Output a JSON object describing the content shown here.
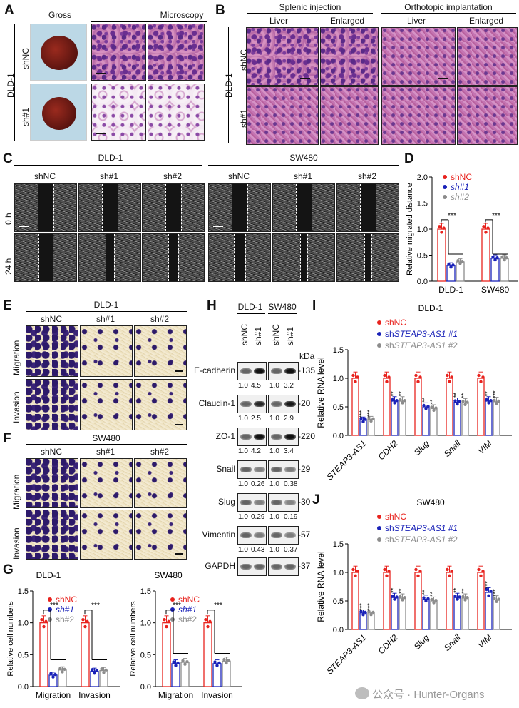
{
  "panels": {
    "A": "A",
    "B": "B",
    "C": "C",
    "D": "D",
    "E": "E",
    "F": "F",
    "G": "G",
    "H": "H",
    "I": "I",
    "J": "J"
  },
  "panelA": {
    "gross": "Gross",
    "microscopy": "Microscopy",
    "cell": "DLD-1",
    "row1": "shNC",
    "row2": "sh#1"
  },
  "panelB": {
    "splenic": "Splenic injection",
    "orthotopic": "Orthotopic implantation",
    "liver": "Liver",
    "enlarged": "Enlarged",
    "cell": "DLD-1",
    "row1": "shNC",
    "row2": "sh#1"
  },
  "panelC": {
    "dld": "DLD-1",
    "sw": "SW480",
    "cols": [
      "shNC",
      "sh#1",
      "sh#2"
    ],
    "row1": "0 h",
    "row2": "24 h"
  },
  "panelE": {
    "cell": "DLD-1",
    "cols": [
      "shNC",
      "sh#1",
      "sh#2"
    ],
    "row1": "Migration",
    "row2": "Invasion"
  },
  "panelF": {
    "cell": "SW480",
    "cols": [
      "shNC",
      "sh#1",
      "sh#2"
    ],
    "row1": "Migration",
    "row2": "Invasion"
  },
  "panelH": {
    "dld": "DLD-1",
    "sw": "SW480",
    "kda": "kDa",
    "lanes": [
      "shNC",
      "sh#1",
      "shNC",
      "sh#1"
    ],
    "blots": [
      {
        "name": "E-cadherin",
        "kda": "135",
        "q": [
          "1.0",
          "4.5",
          "1.0",
          "3.2"
        ]
      },
      {
        "name": "Claudin-1",
        "kda": "20",
        "q": [
          "1.0",
          "2.5",
          "1.0",
          "2.9"
        ]
      },
      {
        "name": "ZO-1",
        "kda": "220",
        "q": [
          "1.0",
          "4.2",
          "1.0",
          "3.4"
        ]
      },
      {
        "name": "Snail",
        "kda": "29",
        "q": [
          "1.0",
          "0.26",
          "1.0",
          "0.38"
        ]
      },
      {
        "name": "Slug",
        "kda": "30",
        "q": [
          "1.0",
          "0.29",
          "1.0",
          "0.19"
        ]
      },
      {
        "name": "Vimentin",
        "kda": "57",
        "q": [
          "1.0",
          "0.43",
          "1.0",
          "0.37"
        ]
      },
      {
        "name": "GAPDH",
        "kda": "37",
        "q": []
      }
    ]
  },
  "colors": {
    "shNC": "#e8231e",
    "sh1": "#1a22b8",
    "sh2": "#8c8c8c"
  },
  "sig3": "***",
  "sig2": "**",
  "chart_data": [
    {
      "id": "D",
      "type": "bar",
      "title": "",
      "ylabel": "Relative  migrated distance",
      "ylim": [
        0,
        2.0
      ],
      "yticks": [
        "0.0",
        "0.5",
        "1.0",
        "1.5",
        "2.0"
      ],
      "categories": [
        "DLD-1",
        "SW480"
      ],
      "series": [
        {
          "name": "shNC",
          "values": [
            1.0,
            1.0
          ]
        },
        {
          "name": "sh#1",
          "values": [
            0.3,
            0.44
          ]
        },
        {
          "name": "sh#2",
          "values": [
            0.37,
            0.44
          ]
        }
      ],
      "legend": [
        "shNC",
        "sh#1",
        "sh#2"
      ],
      "sig": [
        "***",
        "***"
      ]
    },
    {
      "id": "G1",
      "type": "bar",
      "title": "DLD-1",
      "ylabel": "Relative cell numbers",
      "ylim": [
        0,
        1.5
      ],
      "yticks": [
        "0.0",
        "0.5",
        "1.0",
        "1.5"
      ],
      "categories": [
        "Migration",
        "Invasion"
      ],
      "series": [
        {
          "name": "shNC",
          "values": [
            1.0,
            1.0
          ]
        },
        {
          "name": "sh#1",
          "values": [
            0.18,
            0.24
          ]
        },
        {
          "name": "sh#2",
          "values": [
            0.26,
            0.25
          ]
        }
      ],
      "legend": [
        "shNC",
        "sh#1",
        "sh#2"
      ],
      "sig": [
        "***",
        "***"
      ]
    },
    {
      "id": "G2",
      "type": "bar",
      "title": "SW480",
      "ylabel": "Relative cell numbers",
      "ylim": [
        0,
        1.5
      ],
      "yticks": [
        "0.0",
        "0.5",
        "1.0",
        "1.5"
      ],
      "categories": [
        "Migration",
        "Invasion"
      ],
      "series": [
        {
          "name": "shNC",
          "values": [
            1.0,
            1.0
          ]
        },
        {
          "name": "sh#1",
          "values": [
            0.36,
            0.36
          ]
        },
        {
          "name": "sh#2",
          "values": [
            0.38,
            0.4
          ]
        }
      ],
      "legend": [
        "shNC",
        "sh#1",
        "sh#2"
      ],
      "sig": [
        "***",
        "***"
      ]
    },
    {
      "id": "I",
      "type": "bar",
      "title": "DLD-1",
      "ylabel": "Relative RNA level",
      "ylim": [
        0,
        1.5
      ],
      "yticks": [
        "0.0",
        "0.5",
        "1.0",
        "1.5"
      ],
      "categories": [
        "STEAP3-AS1",
        "CDH2",
        "Slug",
        "Snail",
        "VIM"
      ],
      "series": [
        {
          "name": "shSTEAP3-AS1 #1",
          "values": [
            0.27,
            0.6,
            0.5,
            0.58,
            0.6
          ]
        },
        {
          "name": "shSTEAP3-AS1 #2",
          "values": [
            0.28,
            0.6,
            0.47,
            0.57,
            0.59
          ]
        },
        {
          "name": "shNC",
          "values": [
            1.0,
            1.0,
            1.0,
            1.0,
            1.0
          ]
        }
      ],
      "legend": [
        "shNC",
        "shSTEAP3-AS1 #1",
        "shSTEAP3-AS1 #2"
      ],
      "sig1": [
        "***",
        "**",
        "**",
        "**",
        "**"
      ],
      "sig2": [
        "***",
        "**",
        "**",
        "**",
        "***"
      ]
    },
    {
      "id": "J",
      "type": "bar",
      "title": "SW480",
      "ylabel": "Relative RNA level",
      "ylim": [
        0,
        1.5
      ],
      "yticks": [
        "0.0",
        "0.5",
        "1.0",
        "1.5"
      ],
      "categories": [
        "STEAP3-AS1",
        "CDH2",
        "Slug",
        "Snail",
        "VIM"
      ],
      "series": [
        {
          "name": "shSTEAP3-AS1 #1",
          "values": [
            0.29,
            0.56,
            0.53,
            0.56,
            0.65
          ]
        },
        {
          "name": "shSTEAP3-AS1 #2",
          "values": [
            0.29,
            0.55,
            0.5,
            0.55,
            0.52
          ]
        },
        {
          "name": "shNC",
          "values": [
            1.0,
            1.0,
            1.0,
            1.0,
            1.0
          ]
        }
      ],
      "legend": [
        "shNC",
        "shSTEAP3-AS1 #1",
        "shSTEAP3-AS1 #2"
      ],
      "sig1": [
        "***",
        "**",
        "**",
        "**",
        "***"
      ],
      "sig2": [
        "***",
        "**",
        "**",
        "**",
        "***"
      ]
    }
  ],
  "legendI": {
    "sh": "sh",
    "gene1": "STEAP3-AS1 #1",
    "gene2": "STEAP3-AS1 #2"
  },
  "watermark": "公众号 · Hunter-Organs"
}
